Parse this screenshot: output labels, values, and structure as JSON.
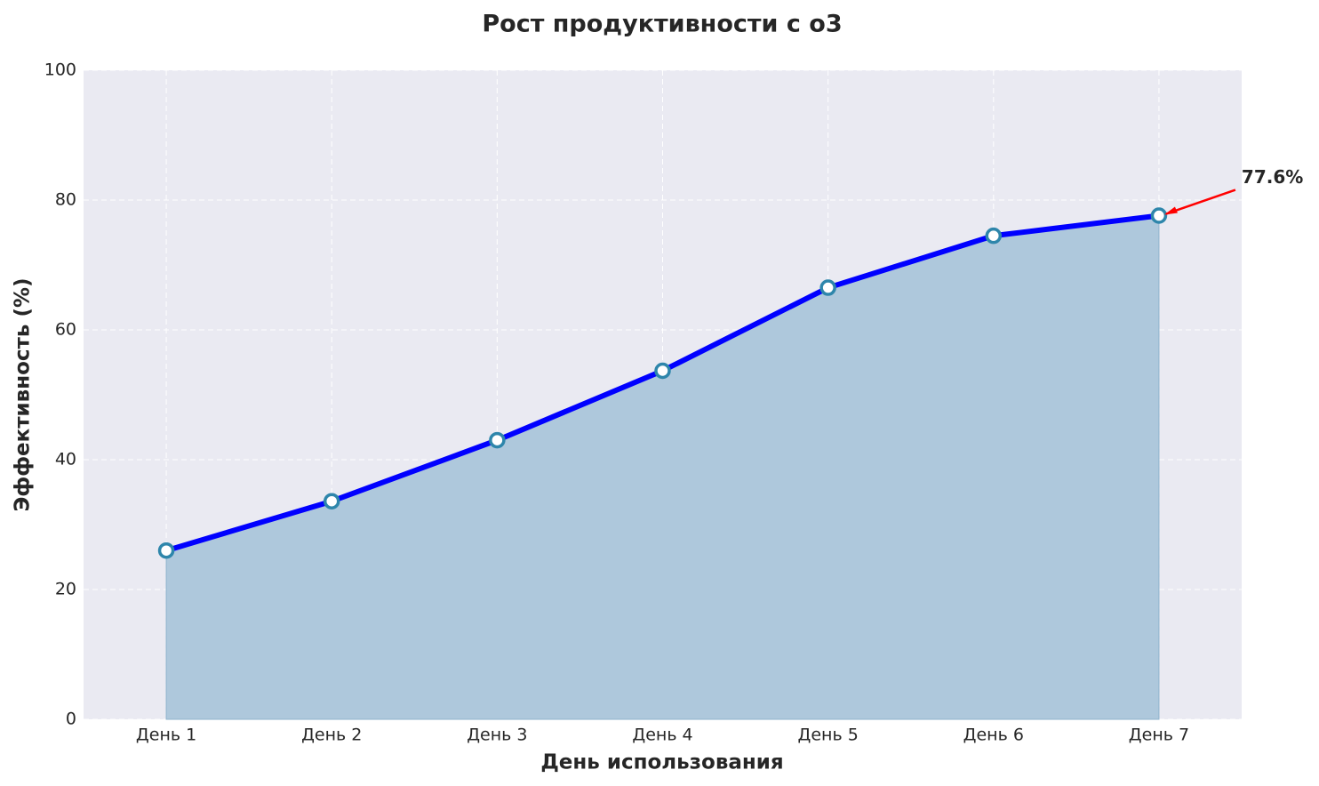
{
  "chart_data": {
    "type": "line",
    "title": "Рост продуктивности с o3",
    "x_label": "День использования",
    "y_label": "Эффективность (%)",
    "categories": [
      "День 1",
      "День 2",
      "День 3",
      "День 4",
      "День 5",
      "День 6",
      "День 7"
    ],
    "values": [
      26.0,
      33.6,
      43.0,
      53.7,
      66.5,
      74.5,
      77.6
    ],
    "color": "#0000ff",
    "fill_color": "#aec8dc",
    "marker_edge_color": "#2e86ab",
    "annotation": "77.6%",
    "annotation_color": "#ff0000",
    "ylim": [
      0,
      100
    ],
    "yticks": [
      0,
      20,
      40,
      60,
      80,
      100
    ],
    "grid": true
  }
}
